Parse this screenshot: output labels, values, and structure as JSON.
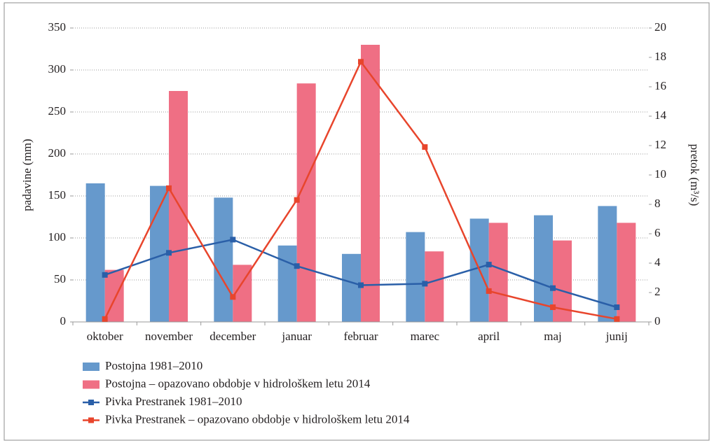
{
  "chart_data": {
    "type": "bar",
    "categories": [
      "oktober",
      "november",
      "december",
      "januar",
      "februar",
      "marec",
      "april",
      "maj",
      "junij"
    ],
    "series": [
      {
        "name": "Postojna 1981–2010",
        "type": "bar",
        "color": "#6699cc",
        "values": [
          165,
          162,
          148,
          91,
          81,
          107,
          123,
          127,
          138
        ]
      },
      {
        "name": "Postojna – opazovano obdobje v hidrološkem letu 2014",
        "type": "bar",
        "color": "#ef6f84",
        "values": [
          62,
          275,
          68,
          284,
          330,
          84,
          118,
          97,
          118
        ]
      },
      {
        "name": "Pivka Prestranek 1981–2010",
        "type": "line",
        "axis": "y2",
        "color": "#2a5fa8",
        "values": [
          3.2,
          4.7,
          5.6,
          3.8,
          2.5,
          2.6,
          3.9,
          2.3,
          1.0
        ]
      },
      {
        "name": "Pivka Prestranek – opazovano obdobje v hidrološkem letu 2014",
        "type": "line",
        "axis": "y2",
        "color": "#e8452c",
        "values": [
          0.2,
          9.1,
          1.7,
          8.3,
          17.7,
          11.9,
          2.1,
          1.0,
          0.2
        ]
      }
    ],
    "ylabel": "padavine (mm)",
    "y2label": "pretok (m³/s)",
    "ylim": [
      0,
      350
    ],
    "yticks": [
      0,
      50,
      100,
      150,
      200,
      250,
      300,
      350
    ],
    "y2lim": [
      0,
      20
    ],
    "y2ticks": [
      0,
      2,
      4,
      6,
      8,
      10,
      12,
      14,
      16,
      18,
      20
    ],
    "grid": true
  }
}
